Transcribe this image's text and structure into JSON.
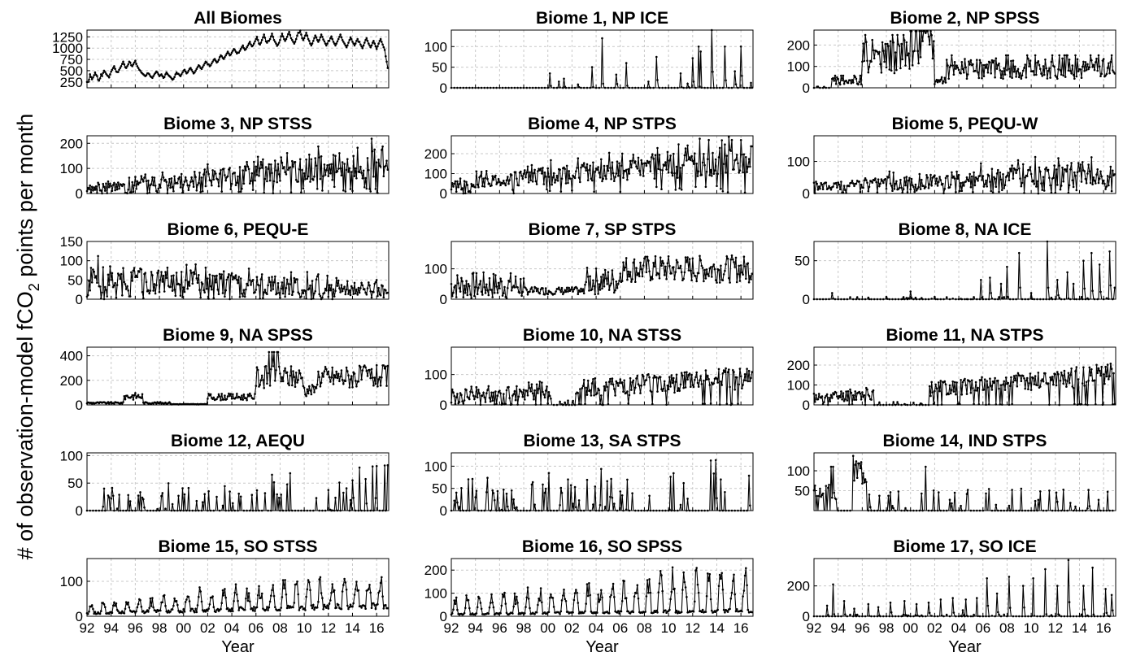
{
  "figure": {
    "ylabel_main": "# of observation-model fCO",
    "ylabel_sub": "2",
    "ylabel_end": " points per month"
  },
  "chart_data": [
    {
      "type": "line",
      "title": "All Biomes",
      "xlabel": "",
      "ylim": [
        120,
        1400
      ],
      "yticks": [
        "250",
        "500",
        "750",
        "1000",
        "1250"
      ],
      "ytick_values": [
        250,
        500,
        750,
        1000,
        1250
      ],
      "x_range": [
        1992,
        2017
      ],
      "xtick_labels": [],
      "y": [
        250,
        300,
        420,
        360,
        310,
        350,
        400,
        460,
        410,
        380,
        300,
        280,
        330,
        420,
        380,
        450,
        500,
        470,
        430,
        400,
        380,
        350,
        420,
        480,
        520,
        560,
        600,
        540,
        480,
        470,
        520,
        560,
        600,
        650,
        700,
        640,
        580,
        560,
        600,
        640,
        700,
        680,
        620,
        600,
        640,
        680,
        720,
        650,
        600,
        560,
        520,
        500,
        460,
        440,
        420,
        400,
        380,
        400,
        440,
        420,
        380,
        360,
        340,
        380,
        420,
        450,
        480,
        460,
        420,
        380,
        400,
        420,
        380,
        340,
        360,
        420,
        460,
        430,
        400,
        380,
        360,
        330,
        300,
        320,
        360,
        420,
        460,
        430,
        400,
        380,
        420,
        460,
        500,
        520,
        480,
        440,
        460,
        500,
        540,
        560,
        520,
        480,
        440,
        460,
        500,
        540,
        580,
        620,
        600,
        560,
        540,
        580,
        620,
        660,
        700,
        680,
        640,
        600,
        620,
        660,
        700,
        740,
        760,
        720,
        680,
        700,
        740,
        800,
        840,
        820,
        780,
        760,
        800,
        840,
        880,
        920,
        880,
        840,
        860,
        900,
        940,
        980,
        960,
        920,
        880,
        900,
        940,
        980,
        1020,
        1060,
        1000,
        960,
        980,
        1020,
        1060,
        1100,
        1140,
        1080,
        1040,
        1060,
        1100,
        1150,
        1200,
        1250,
        1180,
        1100,
        1080,
        1120,
        1180,
        1240,
        1300,
        1230,
        1150,
        1120,
        1160,
        1200,
        1260,
        1320,
        1250,
        1180,
        1140,
        1100,
        1050,
        1080,
        1120,
        1180,
        1260,
        1320,
        1260,
        1200,
        1160,
        1200,
        1250,
        1310,
        1360,
        1290,
        1220,
        1180,
        1140,
        1100,
        1140,
        1200,
        1280,
        1340,
        1390,
        1300,
        1220,
        1180,
        1220,
        1280,
        1340,
        1280,
        1200,
        1160,
        1100,
        1060,
        1100,
        1160,
        1220,
        1280,
        1240,
        1180,
        1140,
        1180,
        1240,
        1300,
        1250,
        1190,
        1150,
        1100,
        1060,
        1100,
        1160,
        1220,
        1260,
        1200,
        1140,
        1100,
        1060,
        1100,
        1150,
        1200,
        1250,
        1300,
        1240,
        1180,
        1140,
        1100,
        1060,
        1020,
        1060,
        1120,
        1180,
        1240,
        1200,
        1140,
        1100,
        1060,
        1100,
        1160,
        1200,
        1140,
        1080,
        1040,
        1000,
        1060,
        1120,
        1180,
        1220,
        1160,
        1100,
        1060,
        1020,
        1060,
        1120,
        1160,
        1100,
        1040,
        980,
        1040,
        1100,
        1160,
        1200,
        1140,
        1080,
        1020,
        960,
        820,
        700,
        560
      ]
    },
    {
      "type": "line",
      "title": "Biome 1, NP ICE",
      "xlabel": "",
      "ylim": [
        0,
        140
      ],
      "yticks": [
        "0",
        "50",
        "100"
      ],
      "ytick_values": [
        0,
        50,
        100
      ],
      "x_range": [
        1992,
        2017
      ],
      "xtick_labels": [],
      "spikes": [
        [
          2000.2,
          35
        ],
        [
          2000.9,
          15
        ],
        [
          2001.3,
          22
        ],
        [
          2002.5,
          8
        ],
        [
          2003.7,
          50
        ],
        [
          2004.5,
          120
        ],
        [
          2005.7,
          32
        ],
        [
          2006.5,
          60
        ],
        [
          2008.3,
          15
        ],
        [
          2009.0,
          75
        ],
        [
          2011.0,
          35
        ],
        [
          2011.6,
          10
        ],
        [
          2012.0,
          72
        ],
        [
          2012.5,
          100
        ],
        [
          2012.7,
          88
        ],
        [
          2013.6,
          140
        ],
        [
          2014.7,
          100
        ],
        [
          2015.5,
          40
        ],
        [
          2016.0,
          100
        ],
        [
          2016.8,
          12
        ]
      ]
    },
    {
      "type": "line",
      "title": "Biome 2, NP SPSS",
      "xlabel": "",
      "ylim": [
        0,
        270
      ],
      "yticks": [
        "0",
        "100",
        "200"
      ],
      "ytick_values": [
        0,
        100,
        200
      ],
      "x_range": [
        1992,
        2017
      ],
      "xtick_labels": [],
      "seed": 2,
      "profile": "np_spss"
    },
    {
      "type": "line",
      "title": "Biome 3, NP STSS",
      "xlabel": "",
      "ylim": [
        0,
        230
      ],
      "yticks": [
        "0",
        "100",
        "200"
      ],
      "ytick_values": [
        0,
        100,
        200
      ],
      "x_range": [
        1992,
        2017
      ],
      "xtick_labels": [],
      "seed": 3,
      "profile": "rising",
      "base": [
        15,
        110
      ],
      "amp": [
        20,
        90
      ]
    },
    {
      "type": "line",
      "title": "Biome 4, NP STPS",
      "xlabel": "",
      "ylim": [
        0,
        290
      ],
      "yticks": [
        "0",
        "100",
        "200"
      ],
      "ytick_values": [
        0,
        100,
        200
      ],
      "x_range": [
        1992,
        2017
      ],
      "xtick_labels": [],
      "seed": 4,
      "profile": "rising",
      "base": [
        40,
        160
      ],
      "amp": [
        40,
        110
      ]
    },
    {
      "type": "line",
      "title": "Biome 5, PEQU-W",
      "xlabel": "",
      "ylim": [
        0,
        180
      ],
      "yticks": [
        "0",
        "100"
      ],
      "ytick_values": [
        0,
        100
      ],
      "x_range": [
        1992,
        2017
      ],
      "xtick_labels": [],
      "seed": 5,
      "profile": "rising",
      "base": [
        20,
        55
      ],
      "amp": [
        20,
        60
      ]
    },
    {
      "type": "line",
      "title": "Biome 6, PEQU-E",
      "xlabel": "",
      "ylim": [
        0,
        150
      ],
      "yticks": [
        "0",
        "50",
        "100",
        "150"
      ],
      "ytick_values": [
        0,
        50,
        100,
        150
      ],
      "x_range": [
        1992,
        2017
      ],
      "xtick_labels": [],
      "seed": 6,
      "profile": "falling",
      "base": [
        45,
        20
      ],
      "amp": [
        50,
        25
      ]
    },
    {
      "type": "line",
      "title": "Biome 7, SP STPS",
      "xlabel": "",
      "ylim": [
        0,
        190
      ],
      "yticks": [
        "0",
        "100"
      ],
      "ytick_values": [
        0,
        100
      ],
      "x_range": [
        1992,
        2017
      ],
      "xtick_labels": [],
      "seed": 7,
      "profile": "sp_stps"
    },
    {
      "type": "line",
      "title": "Biome 8, NA ICE",
      "xlabel": "",
      "ylim": [
        0,
        75
      ],
      "yticks": [
        "0",
        "50"
      ],
      "ytick_values": [
        0,
        50
      ],
      "x_range": [
        1992,
        2017
      ],
      "xtick_labels": [],
      "spikes": [
        [
          1993.5,
          8
        ],
        [
          1996.5,
          2
        ],
        [
          1998.0,
          3
        ],
        [
          2000.0,
          10
        ],
        [
          2002.0,
          3
        ],
        [
          2005.8,
          25
        ],
        [
          2006.6,
          28
        ],
        [
          2007.5,
          20
        ],
        [
          2008.0,
          42
        ],
        [
          2009.0,
          60
        ],
        [
          2010.0,
          8
        ],
        [
          2011.3,
          75
        ],
        [
          2012.2,
          25
        ],
        [
          2013.0,
          35
        ],
        [
          2013.5,
          20
        ],
        [
          2014.3,
          50
        ],
        [
          2015.0,
          60
        ],
        [
          2015.7,
          45
        ],
        [
          2016.5,
          62
        ],
        [
          2016.9,
          15
        ]
      ],
      "baseline_noise": 3
    },
    {
      "type": "line",
      "title": "Biome 9, NA SPSS",
      "xlabel": "",
      "ylim": [
        0,
        470
      ],
      "yticks": [
        "0",
        "200",
        "400"
      ],
      "ytick_values": [
        0,
        200,
        400
      ],
      "x_range": [
        1992,
        2017
      ],
      "xtick_labels": [],
      "seed": 9,
      "profile": "na_spss"
    },
    {
      "type": "line",
      "title": "Biome 10, NA STSS",
      "xlabel": "",
      "ylim": [
        0,
        190
      ],
      "yticks": [
        "0",
        "100"
      ],
      "ytick_values": [
        0,
        100
      ],
      "x_range": [
        1992,
        2017
      ],
      "xtick_labels": [],
      "seed": 10,
      "profile": "gap_rise",
      "base": [
        25,
        80
      ],
      "amp": [
        40,
        60
      ],
      "gap": [
        2000.3,
        2002.3
      ]
    },
    {
      "type": "line",
      "title": "Biome 11, NA STPS",
      "xlabel": "",
      "ylim": [
        0,
        290
      ],
      "yticks": [
        "0",
        "100",
        "200"
      ],
      "ytick_values": [
        0,
        100,
        200
      ],
      "x_range": [
        1992,
        2017
      ],
      "xtick_labels": [],
      "seed": 11,
      "profile": "gap_rise",
      "base": [
        30,
        140
      ],
      "amp": [
        40,
        90
      ],
      "gap": [
        1997.0,
        2001.5
      ]
    },
    {
      "type": "line",
      "title": "Biome 12, AEQU",
      "xlabel": "",
      "ylim": [
        0,
        105
      ],
      "yticks": [
        "0",
        "50",
        "100"
      ],
      "ytick_values": [
        0,
        50,
        100
      ],
      "x_range": [
        1992,
        2017
      ],
      "xtick_labels": [],
      "seed": 12,
      "profile": "sparse",
      "base": [
        5,
        15
      ],
      "amp": [
        25,
        55
      ]
    },
    {
      "type": "line",
      "title": "Biome 13, SA STPS",
      "xlabel": "",
      "ylim": [
        0,
        130
      ],
      "yticks": [
        "0",
        "50",
        "100"
      ],
      "ytick_values": [
        0,
        50,
        100
      ],
      "x_range": [
        1992,
        2017
      ],
      "xtick_labels": [],
      "seed": 13,
      "profile": "sparse",
      "base": [
        5,
        25
      ],
      "amp": [
        45,
        80
      ]
    },
    {
      "type": "line",
      "title": "Biome 14, IND STPS",
      "xlabel": "",
      "ylim": [
        0,
        145
      ],
      "yticks": [
        "50",
        "100"
      ],
      "ytick_values": [
        50,
        100
      ],
      "x_range": [
        1992,
        2017
      ],
      "xtick_labels": [],
      "seed": 14,
      "profile": "ind"
    },
    {
      "type": "line",
      "title": "Biome 15, SO STSS",
      "xlabel": "Year",
      "ylim": [
        0,
        165
      ],
      "yticks": [
        "0",
        "100"
      ],
      "ytick_values": [
        0,
        100
      ],
      "x_range": [
        1992,
        2017
      ],
      "xtick_labels": [
        "92",
        "94",
        "96",
        "98",
        "00",
        "02",
        "04",
        "06",
        "08",
        "10",
        "12",
        "14",
        "16"
      ],
      "seed": 15,
      "profile": "seasonal",
      "base": [
        15,
        50
      ],
      "amp": [
        20,
        90
      ]
    },
    {
      "type": "line",
      "title": "Biome 16, SO SPSS",
      "xlabel": "Year",
      "ylim": [
        0,
        250
      ],
      "yticks": [
        "0",
        "100",
        "200"
      ],
      "ytick_values": [
        0,
        100,
        200
      ],
      "x_range": [
        1992,
        2017
      ],
      "xtick_labels": [
        "92",
        "94",
        "96",
        "98",
        "00",
        "02",
        "04",
        "06",
        "08",
        "10",
        "12",
        "14",
        "16"
      ],
      "seed": 16,
      "profile": "seasonal",
      "base": [
        15,
        40
      ],
      "amp": [
        60,
        170
      ]
    },
    {
      "type": "line",
      "title": "Biome 17, SO ICE",
      "xlabel": "Year",
      "ylim": [
        0,
        380
      ],
      "yticks": [
        "0",
        "200"
      ],
      "ytick_values": [
        0,
        200
      ],
      "x_range": [
        1992,
        2017
      ],
      "xtick_labels": [
        "92",
        "94",
        "96",
        "98",
        "00",
        "02",
        "04",
        "06",
        "08",
        "10",
        "12",
        "14",
        "16"
      ],
      "spikes": [
        [
          1993.1,
          70
        ],
        [
          1993.6,
          210
        ],
        [
          1994.5,
          100
        ],
        [
          1995.3,
          50
        ],
        [
          1996.5,
          80
        ],
        [
          1997.3,
          60
        ],
        [
          1998.3,
          90
        ],
        [
          1999.5,
          100
        ],
        [
          2000.5,
          80
        ],
        [
          2001.5,
          90
        ],
        [
          2002.5,
          110
        ],
        [
          2003.5,
          120
        ],
        [
          2004.3,
          40
        ],
        [
          2004.6,
          110
        ],
        [
          2005.5,
          120
        ],
        [
          2006.3,
          250
        ],
        [
          2007.2,
          150
        ],
        [
          2008.2,
          260
        ],
        [
          2009.3,
          200
        ],
        [
          2010.2,
          250
        ],
        [
          2011.2,
          310
        ],
        [
          2012.2,
          200
        ],
        [
          2013.1,
          370
        ],
        [
          2014.3,
          200
        ],
        [
          2015.1,
          320
        ],
        [
          2016.2,
          180
        ],
        [
          2016.7,
          140
        ]
      ],
      "baseline_noise": 12
    }
  ]
}
